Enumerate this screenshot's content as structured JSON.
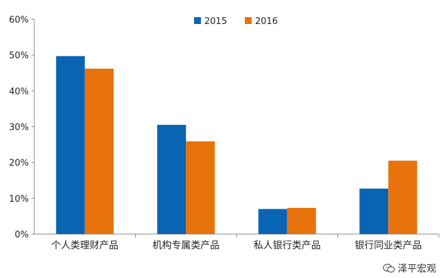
{
  "chart_data": {
    "type": "bar",
    "categories": [
      "个人类理财产品",
      "机构专属类产品",
      "私人银行类产品",
      "银行同业类产品"
    ],
    "series": [
      {
        "name": "2015",
        "values": [
          49.7,
          30.5,
          7.0,
          12.7
        ],
        "color": "#0a64b4"
      },
      {
        "name": "2016",
        "values": [
          46.2,
          25.9,
          7.3,
          20.5
        ],
        "color": "#e8720c"
      }
    ],
    "y_ticks": [
      "0%",
      "10%",
      "20%",
      "30%",
      "40%",
      "50%",
      "60%"
    ],
    "ylim": [
      0,
      60
    ],
    "grid": false,
    "legend_position": "top-center"
  },
  "watermark": {
    "text": "泽平宏观",
    "icon": "wechat-icon"
  }
}
